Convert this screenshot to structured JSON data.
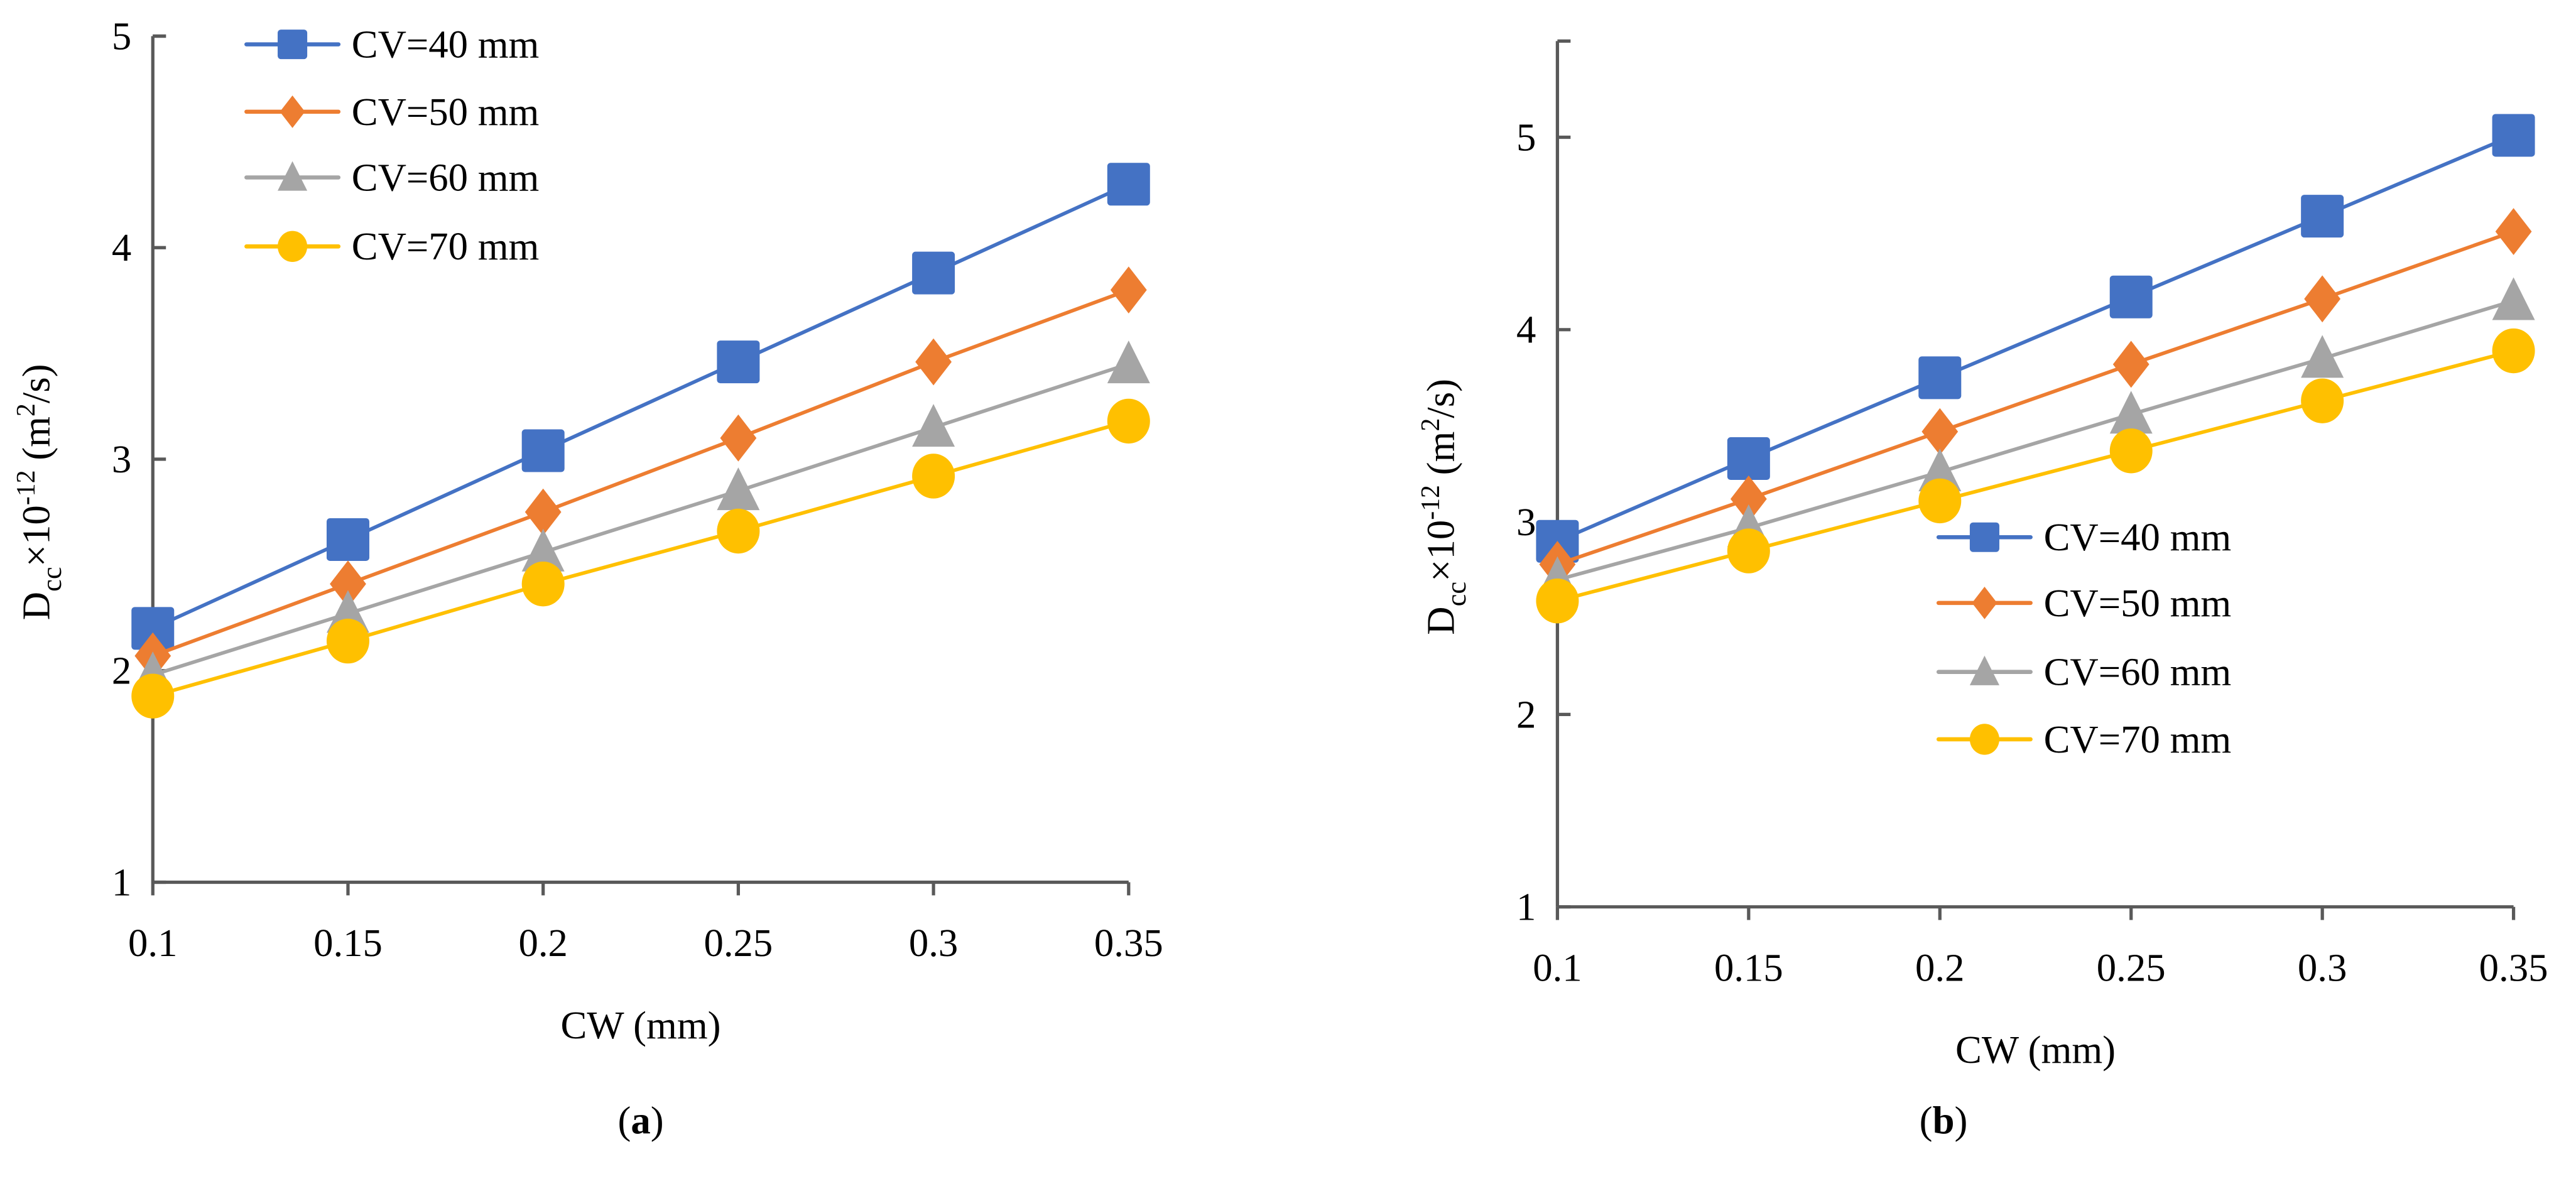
{
  "chart_data": [
    {
      "type": "line",
      "panel_label": "a",
      "xlabel": "CW (mm)",
      "ylabel": {
        "main": "D",
        "sub": "cc",
        "mid": "×10",
        "sup": "-12",
        "unit_pre": " (m",
        "unit_sup": "2",
        "unit_post": "/s)"
      },
      "x": [
        0.1,
        0.15,
        0.2,
        0.25,
        0.3,
        0.35
      ],
      "x_tick_labels": [
        "0.1",
        "0.15",
        "0.2",
        "0.25",
        "0.3",
        "0.35"
      ],
      "ylim": [
        1,
        5
      ],
      "y_ticks": [
        1,
        2,
        3,
        4,
        5
      ],
      "y_tick_labels": [
        "1",
        "2",
        "3",
        "4",
        "5"
      ],
      "grid": false,
      "legend_position": "top-left",
      "series": [
        {
          "name": "CV=40 mm",
          "color": "#4472C4",
          "marker": "square",
          "values": [
            2.2,
            2.62,
            3.04,
            3.46,
            3.88,
            4.3
          ]
        },
        {
          "name": "CV=50 mm",
          "color": "#ED7D31",
          "marker": "diamond",
          "values": [
            2.07,
            2.41,
            2.75,
            3.1,
            3.46,
            3.8
          ]
        },
        {
          "name": "CV=60 mm",
          "color": "#A5A5A5",
          "marker": "triangle",
          "values": [
            1.98,
            2.27,
            2.56,
            2.85,
            3.15,
            3.45
          ]
        },
        {
          "name": "CV=70 mm",
          "color": "#FFC000",
          "marker": "circle",
          "values": [
            1.88,
            2.14,
            2.41,
            2.66,
            2.92,
            3.18
          ]
        }
      ]
    },
    {
      "type": "line",
      "panel_label": "b",
      "xlabel": "CW (mm)",
      "ylabel": {
        "main": "D",
        "sub": "cc",
        "mid": "×10",
        "sup": "-12",
        "unit_pre": " (m",
        "unit_sup": "2",
        "unit_post": "/s)"
      },
      "x": [
        0.1,
        0.15,
        0.2,
        0.25,
        0.3,
        0.35
      ],
      "x_tick_labels": [
        "0.1",
        "0.15",
        "0.2",
        "0.25",
        "0.3",
        "0.35"
      ],
      "ylim": [
        1,
        5.5
      ],
      "y_ticks": [
        1,
        2,
        3,
        4,
        5
      ],
      "y_tick_labels": [
        "1",
        "2",
        "3",
        "4",
        "5"
      ],
      "grid": false,
      "legend_position": "center-right",
      "series": [
        {
          "name": "CV=40 mm",
          "color": "#4472C4",
          "marker": "square",
          "values": [
            2.9,
            3.33,
            3.75,
            4.17,
            4.59,
            5.01
          ]
        },
        {
          "name": "CV=50 mm",
          "color": "#ED7D31",
          "marker": "diamond",
          "values": [
            2.78,
            3.12,
            3.47,
            3.82,
            4.16,
            4.51
          ]
        },
        {
          "name": "CV=60 mm",
          "color": "#A5A5A5",
          "marker": "triangle",
          "values": [
            2.7,
            2.97,
            3.26,
            3.56,
            3.85,
            4.15
          ]
        },
        {
          "name": "CV=70 mm",
          "color": "#FFC000",
          "marker": "circle",
          "values": [
            2.59,
            2.85,
            3.11,
            3.37,
            3.63,
            3.89
          ]
        }
      ]
    }
  ]
}
